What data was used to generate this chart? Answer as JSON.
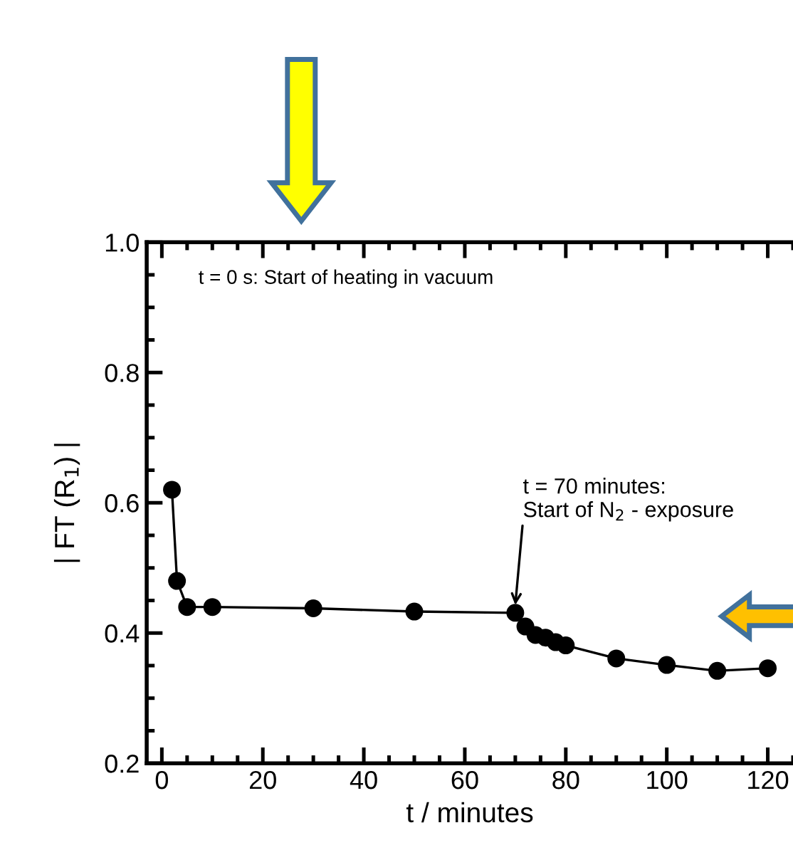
{
  "chart_data": {
    "type": "line",
    "xlabel": "t / minutes",
    "ylabel": "| FT (R$_{1}$) |",
    "x": [
      2,
      3,
      5,
      10,
      30,
      50,
      70,
      72,
      74,
      76,
      78,
      80,
      90,
      100,
      110,
      120
    ],
    "series": [
      {
        "color": "#000000",
        "values": [
          0.62,
          0.48,
          0.44,
          0.44,
          0.438,
          0.433,
          0.431,
          0.41,
          0.397,
          0.393,
          0.386,
          0.381,
          0.361,
          0.351,
          0.342,
          0.346
        ]
      }
    ],
    "xlim": [
      -3,
      125
    ],
    "ylim": [
      0.2,
      1.0
    ],
    "xticks": [
      0,
      20,
      40,
      60,
      80,
      100,
      120
    ],
    "yticks": [
      0.2,
      0.4,
      0.6,
      0.8,
      {
        "value": 1.0,
        "label": "1.0"
      }
    ],
    "marker": "circle",
    "line_style": "solid",
    "grid": false,
    "annotations": [
      "t = 0 s: Start of heating in vacuum",
      {
        "text": "t = 70 minutes:\nStart of N$_{2}$ - exposure",
        "x": 70,
        "y": 0.431
      }
    ]
  }
}
